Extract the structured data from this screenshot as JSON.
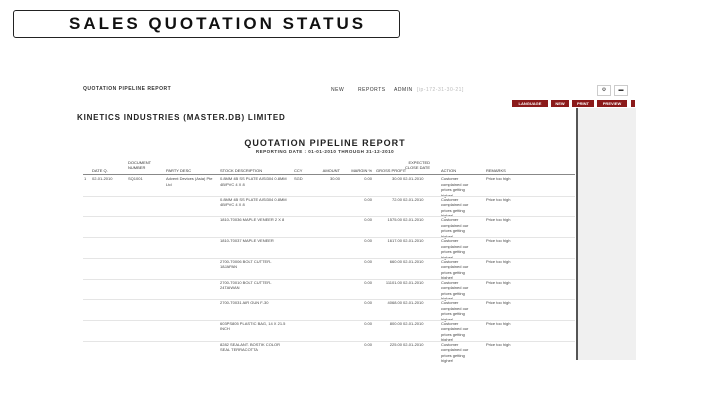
{
  "slide_title": "SALES QUOTATION STATUS",
  "app": {
    "header_title": "QUOTATION PIPELINE REPORT",
    "nav": [
      "NEW",
      "REPORTS",
      "ADMIN"
    ],
    "host": "[ip-172-31-30-21]",
    "icons": [
      "gears-icon",
      "chat-icon"
    ],
    "buttons": [
      "LANGUAGE",
      "NEW",
      "PRINT",
      "PREVIEW"
    ],
    "company": "KINETICS INDUSTRIES (MASTER.DB) LIMITED",
    "report_title": "QUOTATION PIPELINE REPORT",
    "report_subtitle": "REPORTING DATE : 01-01-2010 THROUGH 31-12-2010"
  },
  "table": {
    "headers": {
      "date": "DATE Q.",
      "doc": "DOCUMENT NUMBER",
      "party": "PARTY DESC",
      "stock": "STOCK DESCRIPTION",
      "ccy": "CCY",
      "amount": "AMOUNT",
      "margin": "MARGIN %",
      "gp": "GROSS PROFIT",
      "close": "EXPECTED CLOSE DATE",
      "action": "ACTION",
      "remarks": "REMARKS"
    },
    "rows": [
      {
        "no": "1",
        "date": "02-01-2010",
        "doc": "SQ1001",
        "party": "Advent Devices (Asia) Pte Ltd",
        "stock": "0.8MM 4B SS PLATE AISI304 0.8MM 4B/PVC 4 X 8",
        "ccy": "SGD",
        "amount": "30.00",
        "margin": "0.00",
        "gp": "30.00",
        "close": "02-01-2010",
        "action": "Customer complained our prices getting higher!",
        "remarks": "Price too high"
      },
      {
        "no": "",
        "date": "",
        "doc": "",
        "party": "",
        "stock": "0.8MM 4B SS PLATE AISI304 0.8MM 4B/PVC 4 X 8",
        "ccy": "",
        "amount": "",
        "margin": "0.00",
        "gp": "72.00",
        "close": "02-01-2010",
        "action": "Customer complained our prices getting higher!",
        "remarks": "Price too high"
      },
      {
        "no": "",
        "date": "",
        "doc": "",
        "party": "",
        "stock": "1810-T0036 MAPLE VENEER 2 X 8",
        "ccy": "",
        "amount": "",
        "margin": "0.00",
        "gp": "1575.00",
        "close": "02-01-2010",
        "action": "Customer complained our prices getting higher!",
        "remarks": "Price too high"
      },
      {
        "no": "",
        "date": "",
        "doc": "",
        "party": "",
        "stock": "1810-T0037 MAPLE VENEER",
        "ccy": "",
        "amount": "",
        "margin": "0.00",
        "gp": "1617.00",
        "close": "02-01-2010",
        "action": "Customer complained our prices getting higher!",
        "remarks": "Price too high"
      },
      {
        "no": "",
        "date": "",
        "doc": "",
        "party": "",
        "stock": "2700-T0006 BOLT CUTTER-18JAPAN",
        "ccy": "",
        "amount": "",
        "margin": "0.00",
        "gp": "660.00",
        "close": "02-01-2010",
        "action": "Customer complained our prices getting higher!",
        "remarks": "Price too high"
      },
      {
        "no": "",
        "date": "",
        "doc": "",
        "party": "",
        "stock": "2700-T0010 BOLT CUTTER-24TAIWAN",
        "ccy": "",
        "amount": "",
        "margin": "0.00",
        "gp": "11101.00",
        "close": "02-01-2010",
        "action": "Customer complained our prices getting higher!",
        "remarks": "Price too high"
      },
      {
        "no": "",
        "date": "",
        "doc": "",
        "party": "",
        "stock": "2700-T0031 AIR GUN F-30",
        "ccy": "",
        "amount": "",
        "margin": "0.00",
        "gp": "4068.00",
        "close": "02-01-2010",
        "action": "Customer complained our prices getting higher!",
        "remarks": "Price too high"
      },
      {
        "no": "",
        "date": "",
        "doc": "",
        "party": "",
        "stock": "603PS805 PLASTIC BAG, 14 X 21.5 INCH",
        "ccy": "",
        "amount": "",
        "margin": "0.00",
        "gp": "800.00",
        "close": "02-01-2010",
        "action": "Customer complained our prices getting higher!",
        "remarks": "Price too high"
      },
      {
        "no": "",
        "date": "",
        "doc": "",
        "party": "",
        "stock": "8282 SEALANT. BOSTIK COLOR SEAL TERRACOTTA",
        "ccy": "",
        "amount": "",
        "margin": "0.00",
        "gp": "225.00",
        "close": "02-01-2010",
        "action": "Customer complained our prices getting higher!",
        "remarks": "Price too high"
      }
    ]
  },
  "colors": {
    "button": "#8b1a1a"
  }
}
